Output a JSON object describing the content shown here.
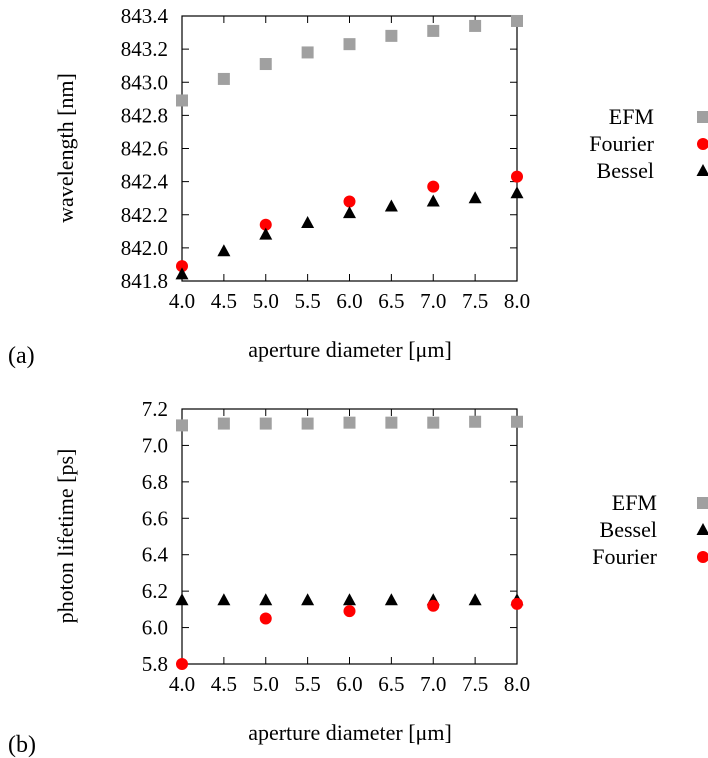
{
  "chart_data": [
    {
      "panel_label": "(a)",
      "type": "scatter",
      "title": "",
      "xlabel": "aperture diameter [μm]",
      "ylabel": "wavelength [nm]",
      "xlim": [
        4.0,
        8.0
      ],
      "ylim": [
        841.8,
        843.4
      ],
      "xticks": [
        "4.0",
        "4.5",
        "5.0",
        "5.5",
        "6.0",
        "6.5",
        "7.0",
        "7.5",
        "8.0"
      ],
      "yticks": [
        "841.8",
        "842.0",
        "842.2",
        "842.4",
        "842.6",
        "842.8",
        "843.0",
        "843.2",
        "843.4"
      ],
      "grid": false,
      "legend_position": "right",
      "series": [
        {
          "name": "EFM",
          "marker": "square",
          "color": "#a0a0a0",
          "x": [
            4.0,
            4.5,
            5.0,
            5.5,
            6.0,
            6.5,
            7.0,
            7.5,
            8.0
          ],
          "y": [
            842.89,
            843.02,
            843.11,
            843.18,
            843.23,
            843.28,
            843.31,
            843.34,
            843.37
          ]
        },
        {
          "name": "Fourier",
          "marker": "circle",
          "color": "#ff0000",
          "x": [
            4.0,
            5.0,
            6.0,
            7.0,
            8.0
          ],
          "y": [
            841.89,
            842.14,
            842.28,
            842.37,
            842.43
          ]
        },
        {
          "name": "Bessel",
          "marker": "triangle",
          "color": "#000000",
          "x": [
            4.0,
            4.5,
            5.0,
            5.5,
            6.0,
            6.5,
            7.0,
            7.5,
            8.0
          ],
          "y": [
            841.84,
            841.98,
            842.08,
            842.15,
            842.21,
            842.25,
            842.28,
            842.3,
            842.33
          ]
        }
      ]
    },
    {
      "panel_label": "(b)",
      "type": "scatter",
      "title": "",
      "xlabel": "aperture diameter [μm]",
      "ylabel": "photon lifetime [ps]",
      "xlim": [
        4.0,
        8.0
      ],
      "ylim": [
        5.8,
        7.2
      ],
      "xticks": [
        "4.0",
        "4.5",
        "5.0",
        "5.5",
        "6.0",
        "6.5",
        "7.0",
        "7.5",
        "8.0"
      ],
      "yticks": [
        "5.8",
        "6.0",
        "6.2",
        "6.4",
        "6.6",
        "6.8",
        "7.0",
        "7.2"
      ],
      "grid": false,
      "legend_position": "right",
      "series": [
        {
          "name": "EFM",
          "marker": "square",
          "color": "#a0a0a0",
          "x": [
            4.0,
            4.5,
            5.0,
            5.5,
            6.0,
            6.5,
            7.0,
            7.5,
            8.0
          ],
          "y": [
            7.11,
            7.12,
            7.12,
            7.12,
            7.125,
            7.125,
            7.125,
            7.13,
            7.13
          ]
        },
        {
          "name": "Bessel",
          "marker": "triangle",
          "color": "#000000",
          "x": [
            4.0,
            4.5,
            5.0,
            5.5,
            6.0,
            6.5,
            7.0,
            7.5,
            8.0
          ],
          "y": [
            6.15,
            6.15,
            6.15,
            6.15,
            6.15,
            6.15,
            6.15,
            6.15,
            6.15
          ]
        },
        {
          "name": "Fourier",
          "marker": "circle",
          "color": "#ff0000",
          "x": [
            4.0,
            5.0,
            6.0,
            7.0,
            8.0
          ],
          "y": [
            5.8,
            6.05,
            6.09,
            6.12,
            6.13
          ]
        }
      ]
    }
  ]
}
